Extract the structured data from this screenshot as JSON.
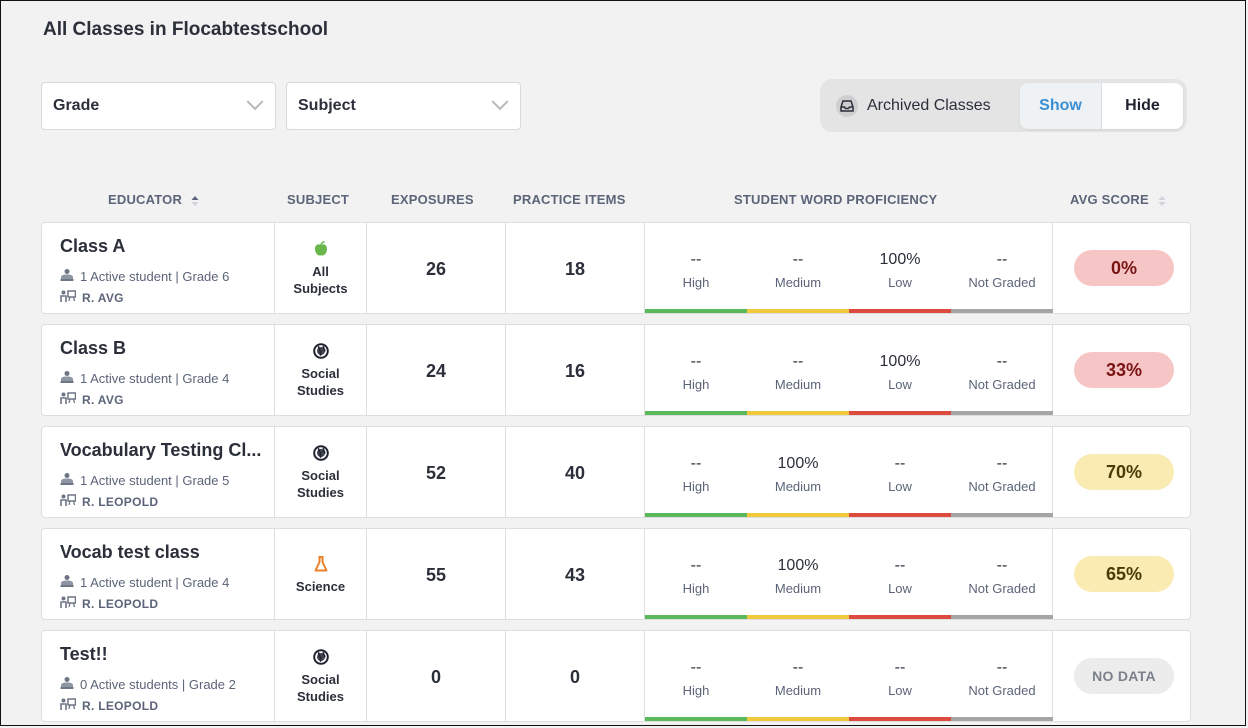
{
  "page_title": "All Classes in Flocabtestschool",
  "filters": {
    "grade": "Grade",
    "subject": "Subject"
  },
  "archived": {
    "label": "Archived Classes",
    "show": "Show",
    "hide": "Hide"
  },
  "columns": {
    "educator": "EDUCATOR",
    "subject": "SUBJECT",
    "exposures": "EXPOSURES",
    "practice": "PRACTICE ITEMS",
    "proficiency": "STUDENT WORD PROFICIENCY",
    "avg": "AVG SCORE"
  },
  "proficiency_labels": [
    "High",
    "Medium",
    "Low",
    "Not Graded"
  ],
  "colors": {
    "high": "#5bb85c",
    "medium": "#f0c93d",
    "low": "#dd4a3e",
    "not_graded": "#a5a5a5",
    "red_badge_bg": "#f6c6c6",
    "red_badge_fg": "#7a1414",
    "yellow_badge_bg": "#f9ebb1",
    "yellow_badge_fg": "#4a3a07"
  },
  "rows": [
    {
      "name": "Class A",
      "students": "1 Active student | Grade 6",
      "teacher": "R. AVG",
      "subject_icon": "apple-icon",
      "subject_lines": [
        "All",
        "Subjects"
      ],
      "exposures": "26",
      "practice": "18",
      "prof": [
        "--",
        "--",
        "100%",
        "--"
      ],
      "avg": "0%",
      "avg_level": "red"
    },
    {
      "name": "Class B",
      "students": "1 Active student | Grade 4",
      "teacher": "R. AVG",
      "subject_icon": "globe-icon",
      "subject_lines": [
        "Social",
        "Studies"
      ],
      "exposures": "24",
      "practice": "16",
      "prof": [
        "--",
        "--",
        "100%",
        "--"
      ],
      "avg": "33%",
      "avg_level": "red"
    },
    {
      "name": "Vocabulary Testing Cl...",
      "students": "1 Active student | Grade 5",
      "teacher": "R. LEOPOLD",
      "subject_icon": "globe-icon",
      "subject_lines": [
        "Social",
        "Studies"
      ],
      "exposures": "52",
      "practice": "40",
      "prof": [
        "--",
        "100%",
        "--",
        "--"
      ],
      "avg": "70%",
      "avg_level": "yellow"
    },
    {
      "name": "Vocab test class",
      "students": "1 Active student | Grade 4",
      "teacher": "R. LEOPOLD",
      "subject_icon": "flask-icon",
      "subject_lines": [
        "Science"
      ],
      "exposures": "55",
      "practice": "43",
      "prof": [
        "--",
        "100%",
        "--",
        "--"
      ],
      "avg": "65%",
      "avg_level": "yellow"
    },
    {
      "name": "Test!!",
      "students": "0 Active students | Grade 2",
      "teacher": "R. LEOPOLD",
      "subject_icon": "globe-icon",
      "subject_lines": [
        "Social",
        "Studies"
      ],
      "exposures": "0",
      "practice": "0",
      "prof": [
        "--",
        "--",
        "--",
        "--"
      ],
      "avg": "NO DATA",
      "avg_level": "none"
    }
  ]
}
